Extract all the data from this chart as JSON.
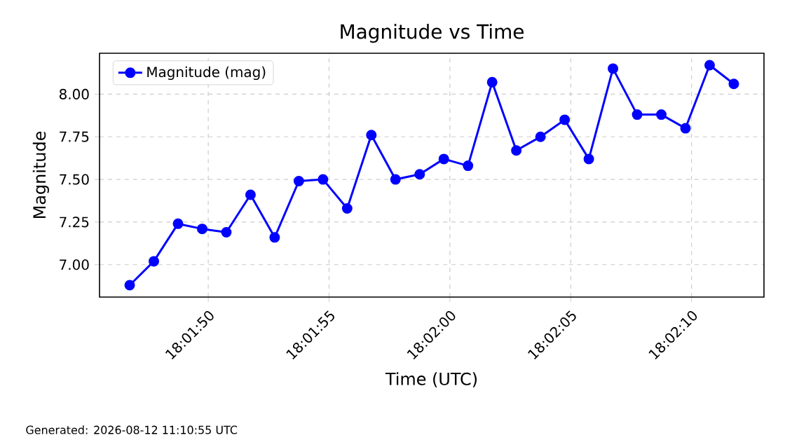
{
  "chart_data": {
    "type": "line",
    "title": "Magnitude vs Time",
    "xlabel": "Time (UTC)",
    "ylabel": "Magnitude",
    "annotations": [
      "Generated: 2026-08-12 11:10:55 UTC"
    ],
    "x": [
      18.0296528,
      18.0299306,
      18.0302083,
      18.0304861,
      18.0307639,
      18.0310417,
      18.0313194,
      18.0315972,
      18.031875,
      18.0321528,
      18.0324306,
      18.0327083,
      18.0329861,
      18.0332639,
      18.0335417,
      18.0338194,
      18.0340972,
      18.034375,
      18.0346528,
      18.0349306,
      18.0352083,
      18.0354861,
      18.0357639,
      18.0360417,
      18.0363194,
      18.0365972
    ],
    "series": [
      {
        "name": "Magnitude (mag)",
        "color": "#0000ff",
        "values": [
          6.88,
          7.02,
          7.24,
          7.21,
          7.19,
          7.41,
          7.16,
          7.49,
          7.5,
          7.33,
          7.76,
          7.5,
          7.53,
          7.62,
          7.58,
          8.07,
          7.67,
          7.75,
          7.85,
          7.62,
          8.15,
          7.88,
          7.88,
          7.8,
          8.17,
          8.06
        ]
      }
    ],
    "xlim": [
      18.029306,
      18.036944
    ],
    "xticks": [
      {
        "value": 18.0305556,
        "label": "18:01:50"
      },
      {
        "value": 18.0319444,
        "label": "18:01:55"
      },
      {
        "value": 18.0333333,
        "label": "18:02:00"
      },
      {
        "value": 18.0347222,
        "label": "18:02:05"
      },
      {
        "value": 18.0361111,
        "label": "18:02:10"
      }
    ],
    "ylim": [
      6.81,
      8.24
    ],
    "yticks": [
      {
        "value": 7.0,
        "label": "7.00"
      },
      {
        "value": 7.25,
        "label": "7.25"
      },
      {
        "value": 7.5,
        "label": "7.50"
      },
      {
        "value": 7.75,
        "label": "7.75"
      },
      {
        "value": 8.0,
        "label": "8.00"
      }
    ],
    "grid": true,
    "legend": "top left",
    "marker": "circle",
    "line_style": "solid"
  }
}
